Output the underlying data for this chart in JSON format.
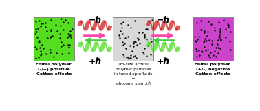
{
  "bg_color": "#ffffff",
  "green_img_color": "#55dd22",
  "magenta_img_color": "#cc44cc",
  "gray_img_color": "#d8d8d8",
  "red_helix_color": "#cc1111",
  "green_helix_color": "#44dd11",
  "arrow_pink": "#ff44aa",
  "arrow_green": "#44cc44",
  "text_labels": [
    "chiral polymer\n(-/+) positive\nCotton effects",
    "μm-size achiral\npolymer particles\nin tuned optofluids\n&\nphotonic spin ±ℏ",
    "chiral polymer\n(+/-) negative\nCotton effects"
  ],
  "minus_hbar": "−ℏ",
  "plus_hbar": "+ℏ"
}
